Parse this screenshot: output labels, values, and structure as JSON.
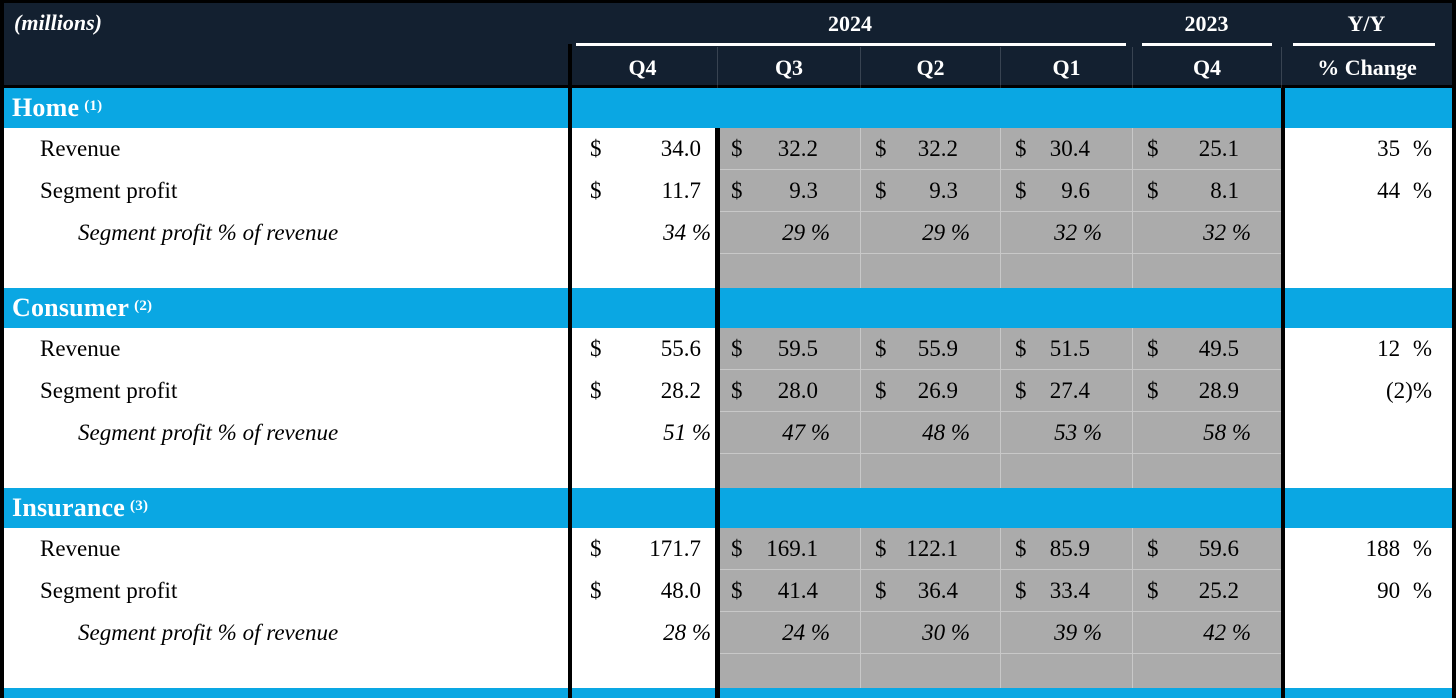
{
  "units_note": "(millions)",
  "currency": "$",
  "header": {
    "groups": [
      {
        "label": "2024",
        "span": 4
      },
      {
        "label": "2023",
        "span": 1
      },
      {
        "label": "Y/Y",
        "span": 1
      }
    ],
    "quarters": [
      "Q4",
      "Q3",
      "Q2",
      "Q1",
      "Q4"
    ],
    "change_label": "% Change"
  },
  "colors": {
    "header_navy": "#132030",
    "section_cyan": "#0aa7e3",
    "prior_quarter_gray": "#ababab",
    "grid_light": "#c8c8c8",
    "rule_black": "#000000"
  },
  "sections": [
    {
      "title": "Home",
      "footnote": "(1)",
      "rows": [
        {
          "label": "Revenue",
          "type": "money",
          "values": [
            "34.0",
            "32.2",
            "32.2",
            "30.4",
            "25.1"
          ],
          "yoy": "35 %"
        },
        {
          "label": "Segment profit",
          "type": "money",
          "values": [
            "11.7",
            "9.3",
            "9.3",
            "9.6",
            "8.1"
          ],
          "yoy": "44 %"
        },
        {
          "label": "Segment profit % of revenue",
          "type": "pct",
          "values": [
            "34 %",
            "29 %",
            "29 %",
            "32 %",
            "32 %"
          ],
          "yoy": ""
        }
      ]
    },
    {
      "title": "Consumer",
      "footnote": "(2)",
      "rows": [
        {
          "label": "Revenue",
          "type": "money",
          "values": [
            "55.6",
            "59.5",
            "55.9",
            "51.5",
            "49.5"
          ],
          "yoy": "12 %"
        },
        {
          "label": "Segment profit",
          "type": "money",
          "values": [
            "28.2",
            "28.0",
            "26.9",
            "27.4",
            "28.9"
          ],
          "yoy": "(2)%"
        },
        {
          "label": "Segment profit % of revenue",
          "type": "pct",
          "values": [
            "51 %",
            "47 %",
            "48 %",
            "53 %",
            "58 %"
          ],
          "yoy": ""
        }
      ]
    },
    {
      "title": "Insurance",
      "footnote": "(3)",
      "rows": [
        {
          "label": "Revenue",
          "type": "money",
          "values": [
            "171.7",
            "169.1",
            "122.1",
            "85.9",
            "59.6"
          ],
          "yoy": "188 %"
        },
        {
          "label": "Segment profit",
          "type": "money",
          "values": [
            "48.0",
            "41.4",
            "36.4",
            "33.4",
            "25.2"
          ],
          "yoy": "90 %"
        },
        {
          "label": "Segment profit % of revenue",
          "type": "pct",
          "values": [
            "28 %",
            "24 %",
            "30 %",
            "39 %",
            "42 %"
          ],
          "yoy": ""
        }
      ]
    }
  ],
  "partial_next_section": true
}
